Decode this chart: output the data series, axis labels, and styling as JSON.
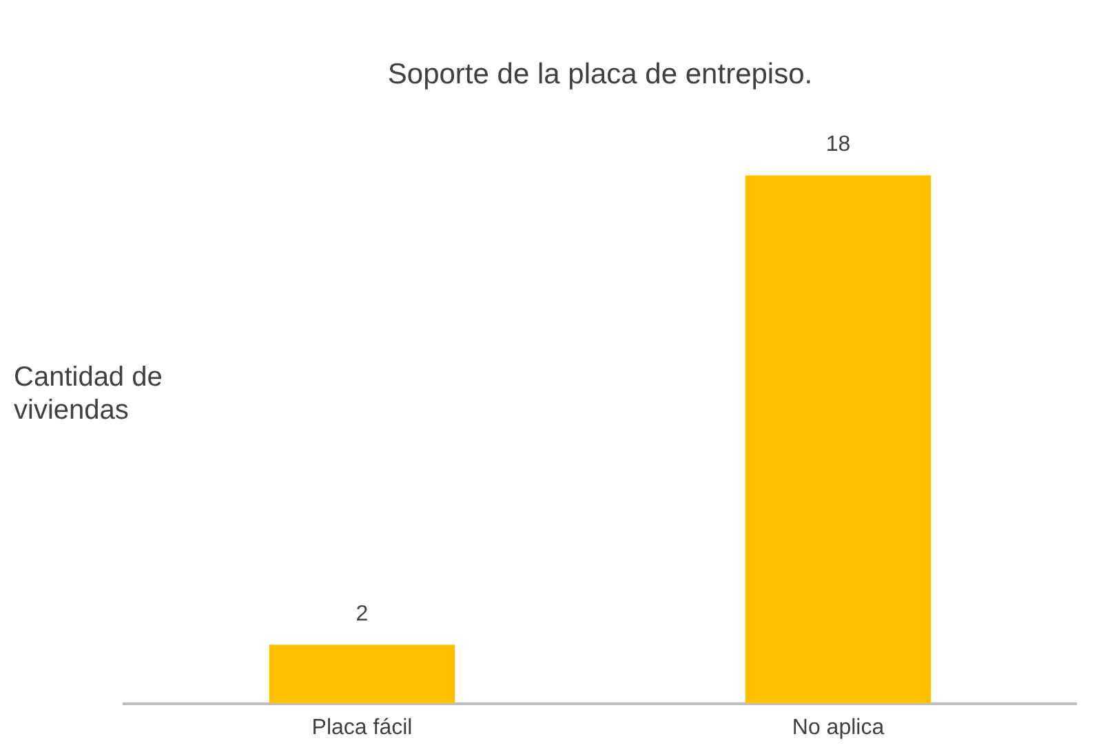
{
  "chart_data": {
    "type": "bar",
    "title": "Soporte de la placa de entrepiso.",
    "ylabel": "Cantidad de viviendas",
    "categories": [
      "Placa fácil",
      "No aplica"
    ],
    "values": [
      2,
      18
    ],
    "color": "#ffc000",
    "data_labels": true,
    "grid": false,
    "legend": false
  }
}
